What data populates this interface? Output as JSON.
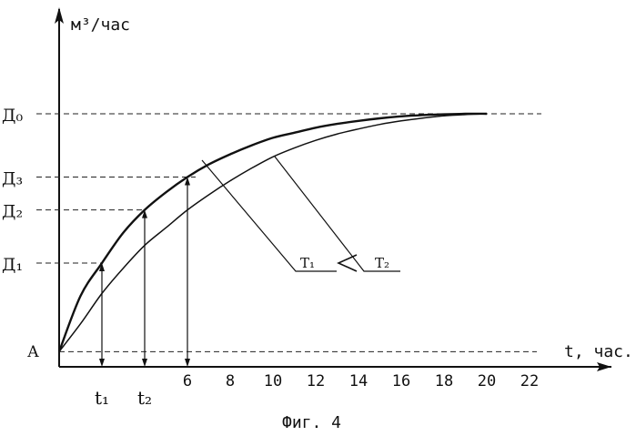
{
  "chart_data": {
    "type": "line",
    "ylabel": "м³/час",
    "xlabel": "t, час.",
    "caption": "Фиг. 4",
    "origin_label": "А",
    "x_ticks": [
      "6",
      "8",
      "10",
      "12",
      "14",
      "16",
      "18",
      "20",
      "22"
    ],
    "xlim": [
      0,
      24
    ],
    "ylim": [
      0,
      1.12
    ],
    "y_levels": [
      {
        "label": "Д₀",
        "value": 1.0
      },
      {
        "label": "Д₃",
        "value": 0.75
      },
      {
        "label": "Д₂",
        "value": 0.62
      },
      {
        "label": "Д₁",
        "value": 0.41
      }
    ],
    "baseline_value": 0.06,
    "time_markers": [
      {
        "label": "t₁",
        "x": 2.0,
        "level": "Д₁"
      },
      {
        "label": "t₂",
        "x": 4.0,
        "level": "Д₂"
      },
      {
        "label": "6",
        "x": 6.0,
        "level": "Д₃"
      }
    ],
    "series": [
      {
        "name": "T₁",
        "x": [
          0,
          1,
          2,
          3,
          4,
          5,
          6,
          7,
          8,
          9,
          10,
          11,
          12,
          13,
          14,
          15,
          16,
          17,
          18,
          19,
          20
        ],
        "y": [
          0.06,
          0.28,
          0.41,
          0.53,
          0.62,
          0.69,
          0.75,
          0.8,
          0.84,
          0.875,
          0.905,
          0.925,
          0.945,
          0.96,
          0.972,
          0.982,
          0.99,
          0.995,
          0.998,
          1.0,
          1.0
        ]
      },
      {
        "name": "T₂",
        "x": [
          0,
          1,
          2,
          3,
          4,
          5,
          6,
          7,
          8,
          9,
          10,
          11,
          12,
          13,
          14,
          15,
          16,
          17,
          18,
          19,
          20
        ],
        "y": [
          0.06,
          0.17,
          0.29,
          0.39,
          0.48,
          0.55,
          0.62,
          0.68,
          0.735,
          0.785,
          0.83,
          0.865,
          0.895,
          0.92,
          0.94,
          0.958,
          0.972,
          0.983,
          0.992,
          0.997,
          1.0
        ]
      }
    ],
    "relation_label": "T₁ < T₂",
    "grid": false,
    "legend": "none"
  }
}
